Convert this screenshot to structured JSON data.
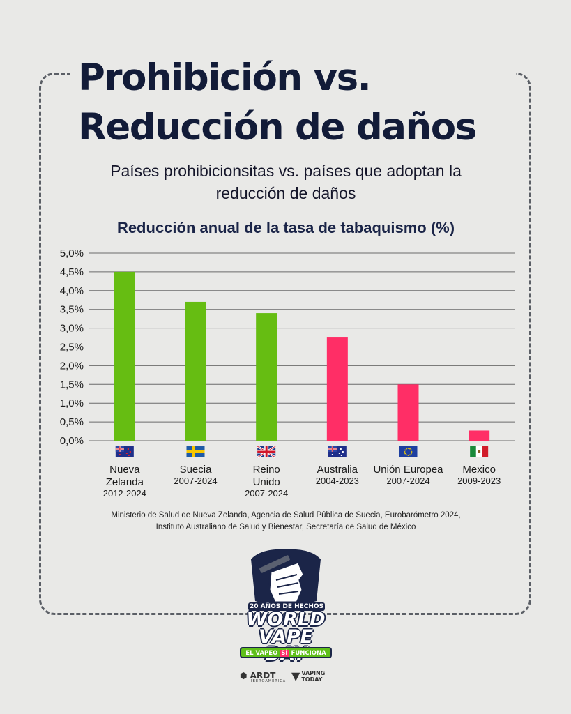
{
  "header": {
    "title_line1": "Prohibición vs.",
    "title_line2": "Reducción de daños",
    "subtitle_line1": "Países prohibicionsitas vs. países que adoptan la",
    "subtitle_line2": "reducción de daños"
  },
  "chart_data": {
    "type": "bar",
    "title": "Reducción anual de la tasa de tabaquismo (%)",
    "xlabel": "",
    "ylabel": "",
    "ylim": [
      0,
      5.0
    ],
    "yticks": [
      "0,0%",
      "0,5%",
      "1,0%",
      "1,5%",
      "2,0%",
      "2,5%",
      "3,0%",
      "3,5%",
      "4,0%",
      "4,5%",
      "5,0%"
    ],
    "grid": true,
    "categories": [
      {
        "name_lines": [
          "Nueva",
          "Zelanda"
        ],
        "period": "2012-2024",
        "flag": "new-zealand-flag",
        "value": 4.5,
        "color": "#66bd12"
      },
      {
        "name_lines": [
          "Suecia"
        ],
        "period": "2007-2024",
        "flag": "sweden-flag",
        "value": 3.7,
        "color": "#66bd12"
      },
      {
        "name_lines": [
          "Reino",
          "Unido"
        ],
        "period": "2007-2024",
        "flag": "united-kingdom-flag",
        "value": 3.4,
        "color": "#66bd12"
      },
      {
        "name_lines": [
          "Australia"
        ],
        "period": "2004-2023",
        "flag": "australia-flag",
        "value": 2.75,
        "color": "#ff2e66"
      },
      {
        "name_lines": [
          "Unión Europea"
        ],
        "period": "2007-2024",
        "flag": "european-union-flag",
        "value": 1.5,
        "color": "#ff2e66"
      },
      {
        "name_lines": [
          "Mexico"
        ],
        "period": "2009-2023",
        "flag": "mexico-flag",
        "value": 0.27,
        "color": "#ff2e66"
      }
    ]
  },
  "sources": {
    "line1": "Ministerio de Salud de Nueva Zelanda, Agencia de Salud Pública de Suecia, Eurobarómetro 2024,",
    "line2": "Instituto Australiano de Salud y Bienestar, Secretaría de Salud de México"
  },
  "logo": {
    "line1": "20 AÑOS DE HECHOS",
    "line2a": "WORLD",
    "line2b": "VAPE DAY",
    "line3a": "EL VAPEO",
    "line3b": "SÍ",
    "line3c": "FUNCIONA"
  },
  "brands": {
    "ardt": "ARDT",
    "ardt_sub": "IBEROAMÉRICA",
    "vaping_today_1": "VAPING",
    "vaping_today_2": "TODAY"
  }
}
